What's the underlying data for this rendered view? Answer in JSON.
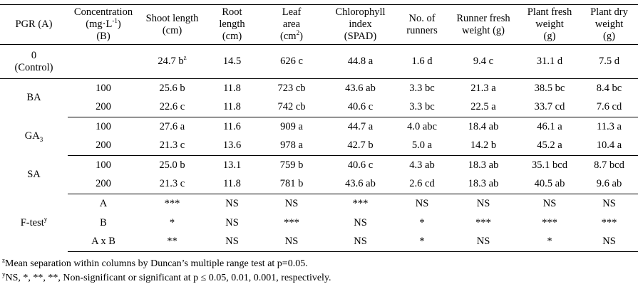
{
  "columns": {
    "pgr": "PGR (A)",
    "conc_l1": "Concentration",
    "conc_l2a": "(mg·L",
    "conc_l2sup": "-1",
    "conc_l2b": ")",
    "conc_l3": "(B)",
    "shoot_l1": "Shoot length",
    "shoot_l2": "(cm)",
    "root_l1": "Root",
    "root_l2": "length",
    "root_l3": "(cm)",
    "leaf_l1": "Leaf",
    "leaf_l2": "area",
    "leaf_l3a": "(cm",
    "leaf_l3sup": "2",
    "leaf_l3b": ")",
    "chl_l1": "Chlorophyll",
    "chl_l2": "index",
    "chl_l3": "(SPAD)",
    "runners_l1": "No. of",
    "runners_l2": "runners",
    "rfw_l1": "Runner fresh",
    "rfw_l2": "weight (g)",
    "pfw_l1": "Plant fresh",
    "pfw_l2": "weight",
    "pfw_l3": "(g)",
    "pdw_l1": "Plant dry",
    "pdw_l2": "weight",
    "pdw_l3": "(g)"
  },
  "control": {
    "pgr_l1": "0",
    "pgr_l2": "(Control)",
    "shoot": "24.7 b",
    "shoot_sup": "z",
    "root": "14.5",
    "leaf": "626 c",
    "chl": "44.8 a",
    "runners": "1.6 d",
    "rfw": "9.4 c",
    "pfw": "31.1 d",
    "pdw": "7.5 d"
  },
  "groups": [
    {
      "pgr": "BA",
      "pgr_sub": "",
      "rows": [
        {
          "conc": "100",
          "shoot": "25.6 b",
          "root": "11.8",
          "leaf": "723 cb",
          "chl": "43.6 ab",
          "runners": "3.3 bc",
          "rfw": "21.3 a",
          "pfw": "38.5 bc",
          "pdw": "8.4 bc"
        },
        {
          "conc": "200",
          "shoot": "22.6 c",
          "root": "11.8",
          "leaf": "742 cb",
          "chl": "40.6 c",
          "runners": "3.3 bc",
          "rfw": "22.5 a",
          "pfw": "33.7 cd",
          "pdw": "7.6 cd"
        }
      ]
    },
    {
      "pgr": "GA",
      "pgr_sub": "3",
      "rows": [
        {
          "conc": "100",
          "shoot": "27.6 a",
          "root": "11.6",
          "leaf": "909 a",
          "chl": "44.7 a",
          "runners": "4.0 abc",
          "rfw": "18.4 ab",
          "pfw": "46.1 a",
          "pdw": "11.3 a"
        },
        {
          "conc": "200",
          "shoot": "21.3 c",
          "root": "13.6",
          "leaf": "978 a",
          "chl": "42.7 b",
          "runners": "5.0 a",
          "rfw": "14.2 b",
          "pfw": "45.2 a",
          "pdw": "10.4 a"
        }
      ]
    },
    {
      "pgr": "SA",
      "pgr_sub": "",
      "rows": [
        {
          "conc": "100",
          "shoot": "25.0 b",
          "root": "13.1",
          "leaf": "759 b",
          "chl": "40.6 c",
          "runners": "4.3 ab",
          "rfw": "18.3 ab",
          "pfw": "35.1 bcd",
          "pdw": "8.7 bcd"
        },
        {
          "conc": "200",
          "shoot": "21.3 c",
          "root": "11.8",
          "leaf": "781 b",
          "chl": "43.6 ab",
          "runners": "2.6 cd",
          "rfw": "18.3 ab",
          "pfw": "40.5 ab",
          "pdw": "9.6 ab"
        }
      ]
    }
  ],
  "ftest": {
    "label": "F-test",
    "label_sup": "y",
    "rows": [
      {
        "factor": "A",
        "shoot": "***",
        "root": "NS",
        "leaf": "NS",
        "chl": "***",
        "runners": "NS",
        "rfw": "NS",
        "pfw": "NS",
        "pdw": "NS"
      },
      {
        "factor": "B",
        "shoot": "*",
        "root": "NS",
        "leaf": "***",
        "chl": "NS",
        "runners": "*",
        "rfw": "***",
        "pfw": "***",
        "pdw": "***"
      },
      {
        "factor": "A x B",
        "shoot": "**",
        "root": "NS",
        "leaf": "NS",
        "chl": "NS",
        "runners": "*",
        "rfw": "NS",
        "pfw": "*",
        "pdw": "NS"
      }
    ]
  },
  "footnotes": {
    "z_sup": "z",
    "z_text": "Mean separation within columns by Duncan’s multiple range test at p=0.05.",
    "y_sup": "y",
    "y_text": "NS, *, **, **, Non-significant or significant at p ≤ 0.05, 0.01, 0.001, respectively."
  }
}
